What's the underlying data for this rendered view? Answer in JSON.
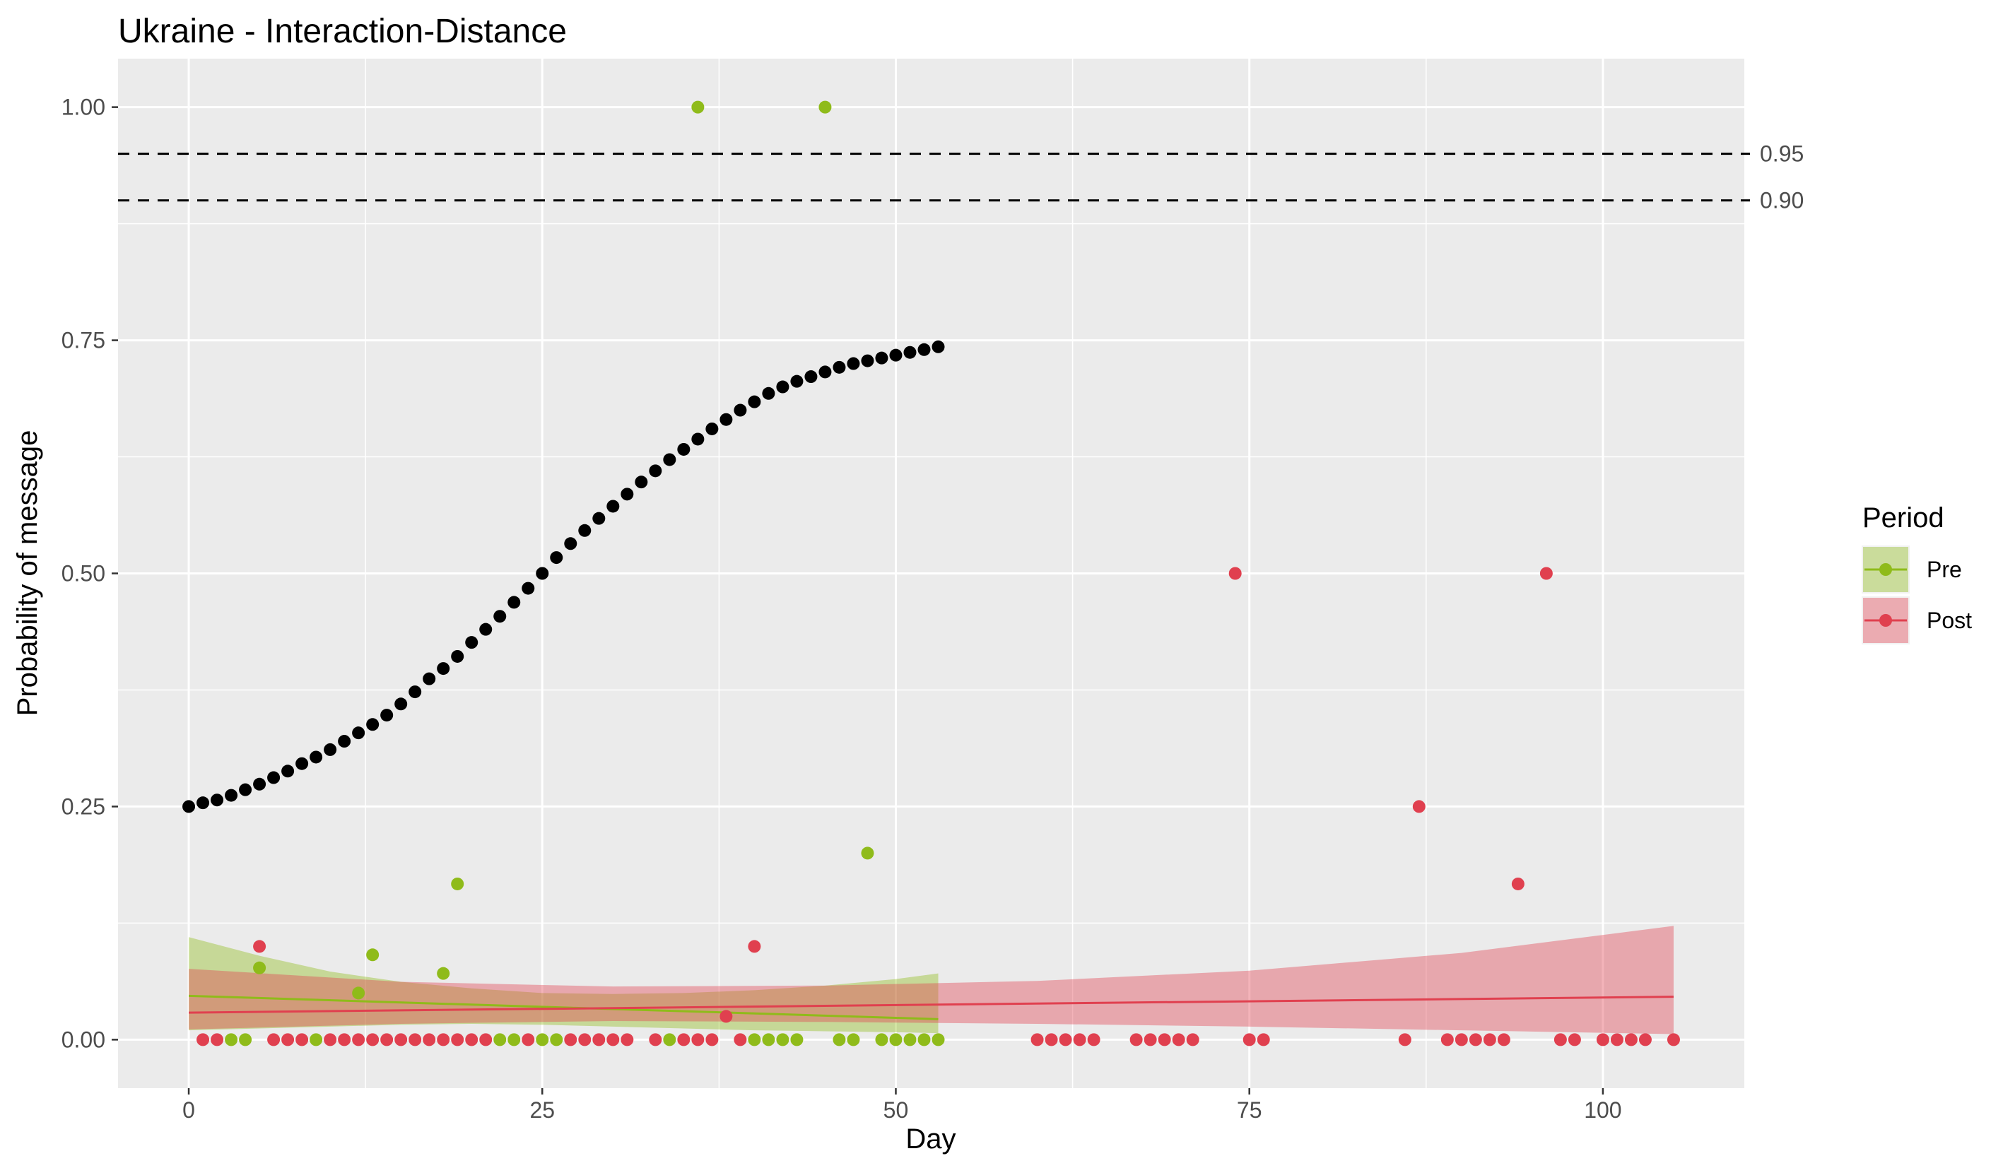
{
  "chart_data": {
    "type": "scatter",
    "title": "Ukraine - Interaction-Distance",
    "xlabel": "Day",
    "ylabel": "Probability of message",
    "xlim": [
      -5,
      110
    ],
    "ylim": [
      -0.052,
      1.052
    ],
    "x_ticks": [
      0,
      25,
      50,
      75,
      100
    ],
    "x_tick_labels": [
      "0",
      "25",
      "50",
      "75",
      "100"
    ],
    "y_ticks": [
      0,
      0.25,
      0.5,
      0.75,
      1
    ],
    "y_tick_labels": [
      "0.00",
      "0.25",
      "0.50",
      "0.75",
      "1.00"
    ],
    "grid": true,
    "background": "#ebebeb",
    "reference_lines": [
      {
        "y": 0.95,
        "label": "0.95",
        "style": "dashed"
      },
      {
        "y": 0.9,
        "label": "0.90",
        "style": "dashed"
      }
    ],
    "legend": {
      "title": "Period",
      "position": "right",
      "entries": [
        {
          "label": "Pre",
          "color": "#8fbb1a",
          "fill": "#c5d98e"
        },
        {
          "label": "Post",
          "color": "#e0404f",
          "fill": "#e8a4ab"
        }
      ]
    },
    "threshold_curve": {
      "color": "#000000",
      "x_start": 0,
      "x_end": 53,
      "y": [
        0.25,
        0.254,
        0.257,
        0.262,
        0.268,
        0.274,
        0.281,
        0.288,
        0.296,
        0.303,
        0.311,
        0.32,
        0.329,
        0.338,
        0.348,
        0.36,
        0.373,
        0.387,
        0.398,
        0.411,
        0.426,
        0.44,
        0.454,
        0.469,
        0.484,
        0.5,
        0.517,
        0.532,
        0.546,
        0.559,
        0.572,
        0.585,
        0.598,
        0.61,
        0.622,
        0.633,
        0.644,
        0.655,
        0.665,
        0.675,
        0.684,
        0.693,
        0.7,
        0.706,
        0.711,
        0.716,
        0.721,
        0.725,
        0.728,
        0.731,
        0.734,
        0.737,
        0.74,
        0.743
      ]
    },
    "series": [
      {
        "name": "Pre",
        "color": "#8fbb1a",
        "fill": "#c5d98e",
        "points": [
          [
            3,
            0
          ],
          [
            4,
            0
          ],
          [
            5,
            0.077
          ],
          [
            9,
            0
          ],
          [
            12,
            0.05
          ],
          [
            13,
            0.091
          ],
          [
            18,
            0.071
          ],
          [
            19,
            0.167
          ],
          [
            22,
            0
          ],
          [
            23,
            0
          ],
          [
            25,
            0
          ],
          [
            26,
            0
          ],
          [
            34,
            0
          ],
          [
            36,
            1.0
          ],
          [
            40,
            0
          ],
          [
            41,
            0
          ],
          [
            42,
            0
          ],
          [
            43,
            0
          ],
          [
            45,
            1.0
          ],
          [
            46,
            0
          ],
          [
            47,
            0
          ],
          [
            48,
            0.2
          ],
          [
            49,
            0
          ],
          [
            50,
            0
          ],
          [
            51,
            0
          ],
          [
            52,
            0
          ],
          [
            53,
            0
          ]
        ],
        "fit": {
          "x": [
            0,
            53
          ],
          "y": [
            0.047,
            0.022
          ]
        },
        "ribbon": {
          "x": [
            0,
            5,
            10,
            15,
            20,
            25,
            30,
            35,
            40,
            45,
            50,
            53
          ],
          "lower": [
            0.01,
            0.012,
            0.014,
            0.016,
            0.017,
            0.016,
            0.014,
            0.012,
            0.01,
            0.009,
            0.008,
            0.007
          ],
          "upper": [
            0.11,
            0.09,
            0.073,
            0.062,
            0.055,
            0.05,
            0.049,
            0.05,
            0.053,
            0.058,
            0.065,
            0.071
          ]
        }
      },
      {
        "name": "Post",
        "color": "#e0404f",
        "fill": "#e8a4ab",
        "points": [
          [
            1,
            0
          ],
          [
            2,
            0
          ],
          [
            5,
            0.1
          ],
          [
            6,
            0
          ],
          [
            7,
            0
          ],
          [
            8,
            0
          ],
          [
            10,
            0
          ],
          [
            11,
            0
          ],
          [
            12,
            0
          ],
          [
            13,
            0
          ],
          [
            14,
            0
          ],
          [
            15,
            0
          ],
          [
            16,
            0
          ],
          [
            17,
            0
          ],
          [
            18,
            0
          ],
          [
            19,
            0
          ],
          [
            20,
            0
          ],
          [
            21,
            0
          ],
          [
            24,
            0
          ],
          [
            27,
            0
          ],
          [
            28,
            0
          ],
          [
            29,
            0
          ],
          [
            30,
            0
          ],
          [
            31,
            0
          ],
          [
            33,
            0
          ],
          [
            35,
            0
          ],
          [
            36,
            0
          ],
          [
            37,
            0
          ],
          [
            38,
            0.025
          ],
          [
            39,
            0
          ],
          [
            40,
            0.1
          ],
          [
            60,
            0
          ],
          [
            61,
            0
          ],
          [
            62,
            0
          ],
          [
            63,
            0
          ],
          [
            64,
            0
          ],
          [
            67,
            0
          ],
          [
            68,
            0
          ],
          [
            69,
            0
          ],
          [
            70,
            0
          ],
          [
            71,
            0
          ],
          [
            74,
            0.5
          ],
          [
            75,
            0
          ],
          [
            76,
            0
          ],
          [
            86,
            0
          ],
          [
            87,
            0.25
          ],
          [
            89,
            0
          ],
          [
            90,
            0
          ],
          [
            91,
            0
          ],
          [
            92,
            0
          ],
          [
            93,
            0
          ],
          [
            94,
            0.167
          ],
          [
            96,
            0.5
          ],
          [
            97,
            0
          ],
          [
            98,
            0
          ],
          [
            100,
            0
          ],
          [
            101,
            0
          ],
          [
            102,
            0
          ],
          [
            103,
            0
          ],
          [
            105,
            0
          ]
        ],
        "fit": {
          "x": [
            0,
            105
          ],
          "y": [
            0.029,
            0.046
          ]
        },
        "ribbon": {
          "x": [
            0,
            15,
            30,
            45,
            60,
            75,
            90,
            105
          ],
          "lower": [
            0.011,
            0.017,
            0.02,
            0.019,
            0.017,
            0.014,
            0.01,
            0.006
          ],
          "upper": [
            0.076,
            0.062,
            0.057,
            0.058,
            0.063,
            0.074,
            0.093,
            0.122
          ]
        }
      }
    ]
  }
}
